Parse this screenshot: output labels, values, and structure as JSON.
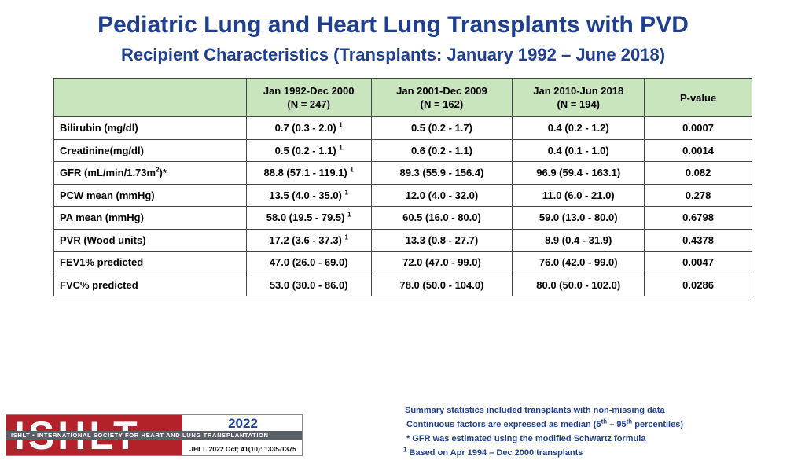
{
  "title": "Pediatric Lung and Heart Lung Transplants with PVD",
  "subtitle": "Recipient Characteristics (Transplants: January 1992 – June 2018)",
  "table": {
    "headers": [
      {
        "line1": "",
        "line2": ""
      },
      {
        "line1": "Jan 1992-Dec 2000",
        "line2": "(N = 247)"
      },
      {
        "line1": "Jan 2001-Dec 2009",
        "line2": "(N = 162)"
      },
      {
        "line1": "Jan 2010-Jun 2018",
        "line2": "(N = 194)"
      },
      {
        "line1": "P-value",
        "line2": ""
      }
    ],
    "rows": [
      {
        "label": "Bilirubin (mg/dl)",
        "label_sup": "",
        "label_suffix": "",
        "c1": "0.7 (0.3 - 2.0)",
        "c1_sup": "1",
        "c2": "0.5 (0.2 - 1.7)",
        "c3": "0.4 (0.2 - 1.2)",
        "p": "0.0007"
      },
      {
        "label": "Creatinine(mg/dl)",
        "label_sup": "",
        "label_suffix": "",
        "c1": "0.5 (0.2 - 1.1)",
        "c1_sup": "1",
        "c2": "0.6 (0.2 - 1.1)",
        "c3": "0.4 (0.1 - 1.0)",
        "p": "0.0014"
      },
      {
        "label": "GFR (mL/min/1.73m",
        "label_sup": "2",
        "label_suffix": ")*",
        "c1": "88.8 (57.1 - 119.1)",
        "c1_sup": "1",
        "c2": "89.3 (55.9 - 156.4)",
        "c3": "96.9 (59.4 - 163.1)",
        "p": "0.082"
      },
      {
        "label": "PCW mean (mmHg)",
        "label_sup": "",
        "label_suffix": "",
        "c1": "13.5 (4.0 - 35.0)",
        "c1_sup": "1",
        "c2": "12.0 (4.0 - 32.0)",
        "c3": "11.0 (6.0 - 21.0)",
        "p": "0.278"
      },
      {
        "label": "PA mean (mmHg)",
        "label_sup": "",
        "label_suffix": "",
        "c1": "58.0 (19.5 - 79.5)",
        "c1_sup": "1",
        "c2": "60.5 (16.0 - 80.0)",
        "c3": "59.0 (13.0 - 80.0)",
        "p": "0.6798"
      },
      {
        "label": "PVR (Wood units)",
        "label_sup": "",
        "label_suffix": "",
        "c1": "17.2 (3.6 - 37.3)",
        "c1_sup": "1",
        "c2": "13.3 (0.8 - 27.7)",
        "c3": "8.9 (0.4 - 31.9)",
        "p": "0.4378"
      },
      {
        "label": "FEV1% predicted",
        "label_sup": "",
        "label_suffix": "",
        "c1": "47.0 (26.0 - 69.0)",
        "c1_sup": "",
        "c2": "72.0 (47.0 - 99.0)",
        "c3": "76.0 (42.0 - 99.0)",
        "p": "0.0047"
      },
      {
        "label": "FVC% predicted",
        "label_sup": "",
        "label_suffix": "",
        "c1": "53.0 (30.0 - 86.0)",
        "c1_sup": "",
        "c2": "78.0 (50.0 - 104.0)",
        "c3": "80.0 (50.0 - 102.0)",
        "p": "0.0286"
      }
    ]
  },
  "footnotes": {
    "line1": "Summary statistics included transplants with non-missing data",
    "line2_a": "Continuous factors are expressed as median (5",
    "line2_sup1": "th",
    "line2_b": " – 95",
    "line2_sup2": "th",
    "line2_c": " percentiles)",
    "line3": "* GFR was estimated using the modified Schwartz formula",
    "line4_sup": "1",
    "line4": " Based on Apr 1994 – Dec 2000 transplants"
  },
  "logo": {
    "letters": "ISHLT",
    "band": "ISHLT • INTERNATIONAL SOCIETY FOR HEART AND LUNG TRANSPLANTATION",
    "year": "2022",
    "citation": "JHLT. 2022 Oct; 41(10): 1335-1375",
    "colors": {
      "red": "#b3212a",
      "band": "#5a5f66",
      "navy": "#1f3f8f"
    }
  }
}
